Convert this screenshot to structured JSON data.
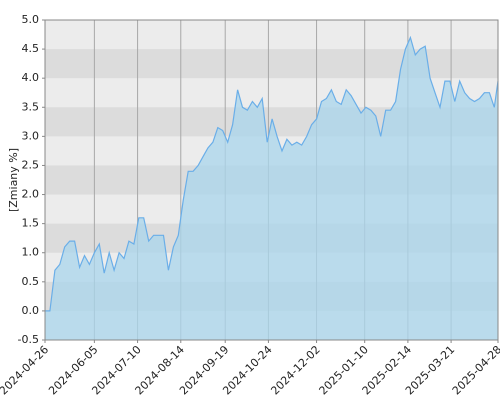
{
  "chart_data": {
    "type": "area",
    "y_label": "[Zmiany %]",
    "color": "#6aaee8",
    "fill": "#a9d6ec",
    "grid": true,
    "xlim": [
      "2024-04-26",
      "2025-04-28"
    ],
    "xticks": [
      "2024-04-26",
      "2024-06-05",
      "2024-07-10",
      "2024-08-14",
      "2024-09-19",
      "2024-10-24",
      "2024-12-02",
      "2025-01-10",
      "2025-02-14",
      "2025-03-21",
      "2025-04-28"
    ],
    "ylim": [
      -0.5,
      5
    ],
    "yticks": [
      -0.5,
      {
        "value": 0,
        "label": "0.0"
      },
      0.5,
      {
        "value": 1,
        "label": "1.0"
      },
      1.5,
      {
        "value": 2,
        "label": "2.0"
      },
      2.5,
      {
        "value": 3,
        "label": "3.0"
      },
      3.5,
      {
        "value": 4,
        "label": "4.0"
      },
      4.5,
      {
        "value": 5,
        "label": "5.0"
      }
    ],
    "x": [
      "2024-04-26",
      "2024-04-30",
      "2024-05-04",
      "2024-05-08",
      "2024-05-12",
      "2024-05-16",
      "2024-05-20",
      "2024-05-24",
      "2024-05-28",
      "2024-06-01",
      "2024-06-05",
      "2024-06-09",
      "2024-06-13",
      "2024-06-17",
      "2024-06-21",
      "2024-06-25",
      "2024-06-29",
      "2024-07-03",
      "2024-07-07",
      "2024-07-11",
      "2024-07-15",
      "2024-07-19",
      "2024-07-23",
      "2024-07-27",
      "2024-07-31",
      "2024-08-04",
      "2024-08-08",
      "2024-08-12",
      "2024-08-16",
      "2024-08-20",
      "2024-08-24",
      "2024-08-28",
      "2024-09-01",
      "2024-09-05",
      "2024-09-09",
      "2024-09-13",
      "2024-09-17",
      "2024-09-21",
      "2024-09-25",
      "2024-09-29",
      "2024-10-03",
      "2024-10-07",
      "2024-10-11",
      "2024-10-15",
      "2024-10-19",
      "2024-10-23",
      "2024-10-27",
      "2024-10-31",
      "2024-11-04",
      "2024-11-08",
      "2024-11-12",
      "2024-11-16",
      "2024-11-20",
      "2024-11-24",
      "2024-11-28",
      "2024-12-02",
      "2024-12-06",
      "2024-12-10",
      "2024-12-14",
      "2024-12-18",
      "2024-12-22",
      "2024-12-26",
      "2024-12-30",
      "2025-01-03",
      "2025-01-07",
      "2025-01-11",
      "2025-01-15",
      "2025-01-19",
      "2025-01-23",
      "2025-01-27",
      "2025-01-31",
      "2025-02-04",
      "2025-02-08",
      "2025-02-12",
      "2025-02-16",
      "2025-02-20",
      "2025-02-24",
      "2025-02-28",
      "2025-03-04",
      "2025-03-08",
      "2025-03-12",
      "2025-03-16",
      "2025-03-20",
      "2025-03-24",
      "2025-03-28",
      "2025-04-01",
      "2025-04-05",
      "2025-04-09",
      "2025-04-13",
      "2025-04-17",
      "2025-04-21",
      "2025-04-25",
      "2025-04-28"
    ],
    "values": [
      0.0,
      0.0,
      0.7,
      0.8,
      1.1,
      1.2,
      1.2,
      0.75,
      0.95,
      0.8,
      1.0,
      1.15,
      0.65,
      1.0,
      0.7,
      1.0,
      0.9,
      1.2,
      1.15,
      1.6,
      1.6,
      1.2,
      1.3,
      1.3,
      1.3,
      0.7,
      1.1,
      1.3,
      1.9,
      2.4,
      2.4,
      2.5,
      2.65,
      2.8,
      2.9,
      3.15,
      3.1,
      2.9,
      3.2,
      3.8,
      3.5,
      3.45,
      3.6,
      3.5,
      3.65,
      2.9,
      3.3,
      3.0,
      2.75,
      2.95,
      2.85,
      2.9,
      2.85,
      3.0,
      3.2,
      3.3,
      3.6,
      3.65,
      3.8,
      3.6,
      3.55,
      3.8,
      3.7,
      3.55,
      3.4,
      3.5,
      3.45,
      3.35,
      3.0,
      3.45,
      3.45,
      3.6,
      4.15,
      4.5,
      4.7,
      4.4,
      4.5,
      4.55,
      4.0,
      3.75,
      3.5,
      3.95,
      3.95,
      3.6,
      3.95,
      3.75,
      3.65,
      3.6,
      3.65,
      3.75,
      3.75,
      3.5,
      3.95
    ]
  }
}
